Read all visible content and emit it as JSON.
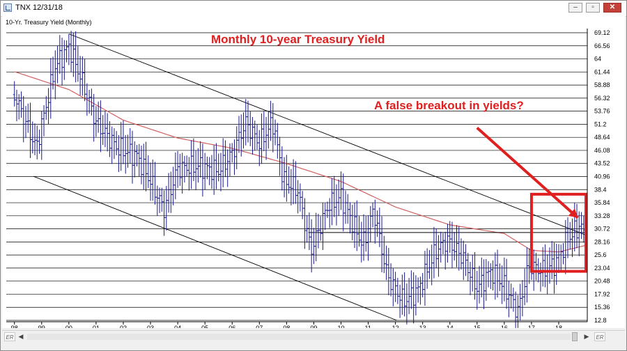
{
  "window": {
    "title": "TNX 12/31/18",
    "min_label": "–",
    "max_label": "▫",
    "close_label": "✕"
  },
  "chart_data": {
    "type": "ohlc",
    "symbol_label": "10-Yr. Treasury Yield (Monthly)",
    "title": "Monthly 10-year Treasury Yield",
    "annotation": "A false breakout in yields?",
    "x_tick_labels": [
      "98",
      "99",
      "00",
      "01",
      "02",
      "03",
      "04",
      "05",
      "06",
      "07",
      "08",
      "09",
      "10",
      "11",
      "12",
      "13",
      "14",
      "15",
      "16",
      "17",
      "18"
    ],
    "x_range": [
      1997.7,
      2019.05
    ],
    "y_range": [
      12.8,
      69.12
    ],
    "y_ticks": [
      69.12,
      66.56,
      64,
      61.44,
      58.88,
      56.32,
      53.76,
      51.2,
      48.64,
      46.08,
      43.52,
      40.96,
      38.4,
      35.84,
      33.28,
      30.72,
      28.16,
      25.6,
      23.04,
      20.48,
      17.92,
      15.36,
      12.8
    ],
    "y_tick_labels": [
      "69.12",
      "66.56",
      "64",
      "61.44",
      "58.88",
      "56.32",
      "53.76",
      "51.2",
      "48.64",
      "46.08",
      "43.52",
      "40.96",
      "38.4",
      "35.84",
      "33.28",
      "30.72",
      "28.16",
      "25.6",
      "23.04",
      "20.48",
      "17.92",
      "15.36",
      "12.8"
    ],
    "price_path": [
      [
        1998.0,
        57.0
      ],
      [
        1998.8,
        46.5
      ],
      [
        1999.5,
        62.5
      ],
      [
        2000.0,
        66.5
      ],
      [
        2000.6,
        58.0
      ],
      [
        2001.0,
        51.5
      ],
      [
        2001.8,
        46.5
      ],
      [
        2002.5,
        45.0
      ],
      [
        2003.0,
        40.0
      ],
      [
        2003.5,
        34.5
      ],
      [
        2004.0,
        42.5
      ],
      [
        2004.8,
        43.0
      ],
      [
        2005.5,
        42.0
      ],
      [
        2006.0,
        45.5
      ],
      [
        2006.5,
        51.5
      ],
      [
        2007.0,
        47.5
      ],
      [
        2007.5,
        51.5
      ],
      [
        2007.9,
        40.0
      ],
      [
        2008.4,
        38.5
      ],
      [
        2008.9,
        26.5
      ],
      [
        2009.5,
        35.0
      ],
      [
        2010.0,
        37.0
      ],
      [
        2010.8,
        27.5
      ],
      [
        2011.2,
        34.5
      ],
      [
        2011.7,
        21.5
      ],
      [
        2012.3,
        16.5
      ],
      [
        2012.8,
        18.5
      ],
      [
        2013.5,
        26.5
      ],
      [
        2013.9,
        28.5
      ],
      [
        2014.5,
        25.0
      ],
      [
        2015.0,
        19.0
      ],
      [
        2015.5,
        22.5
      ],
      [
        2016.0,
        19.5
      ],
      [
        2016.5,
        14.5
      ],
      [
        2016.9,
        23.5
      ],
      [
        2017.5,
        22.5
      ],
      [
        2017.9,
        24.0
      ],
      [
        2018.3,
        28.5
      ],
      [
        2018.8,
        31.5
      ],
      [
        2019.0,
        28.5
      ]
    ],
    "moving_average_path": [
      [
        1998.0,
        61.5
      ],
      [
        2000.0,
        58.0
      ],
      [
        2002.0,
        52.0
      ],
      [
        2004.0,
        48.5
      ],
      [
        2006.0,
        46.5
      ],
      [
        2008.0,
        43.5
      ],
      [
        2010.0,
        40.0
      ],
      [
        2012.0,
        35.0
      ],
      [
        2014.0,
        31.5
      ],
      [
        2016.0,
        29.8
      ],
      [
        2017.0,
        26.5
      ],
      [
        2018.0,
        26.2
      ],
      [
        2019.0,
        27.5
      ]
    ],
    "trendlines": [
      {
        "name": "upper-channel",
        "points": [
          [
            2000.0,
            68.9
          ],
          [
            2019.0,
            29.5
          ]
        ]
      },
      {
        "name": "lower-channel",
        "points": [
          [
            1998.7,
            41.0
          ],
          [
            2012.05,
            12.8
          ]
        ]
      },
      {
        "name": "support-line",
        "points": [
          [
            2008.8,
            30.0
          ],
          [
            2019.0,
            30.0
          ]
        ]
      }
    ],
    "highlight_box": {
      "x": [
        2017.0,
        2019.0
      ],
      "y": [
        22.4,
        37.5
      ]
    },
    "arrow": {
      "from": [
        2015.0,
        50.5
      ],
      "to": [
        2018.7,
        32.9
      ]
    },
    "colors": {
      "bars": "#1a1a8c",
      "moving_average": "#d06060",
      "annotation": "#e02020",
      "grid": "#000000",
      "trendline": "#000000"
    }
  },
  "scrollbar": {
    "left_er": "ER",
    "right_er": "ER",
    "left_arrow": "◀",
    "right_arrow": "▶"
  }
}
